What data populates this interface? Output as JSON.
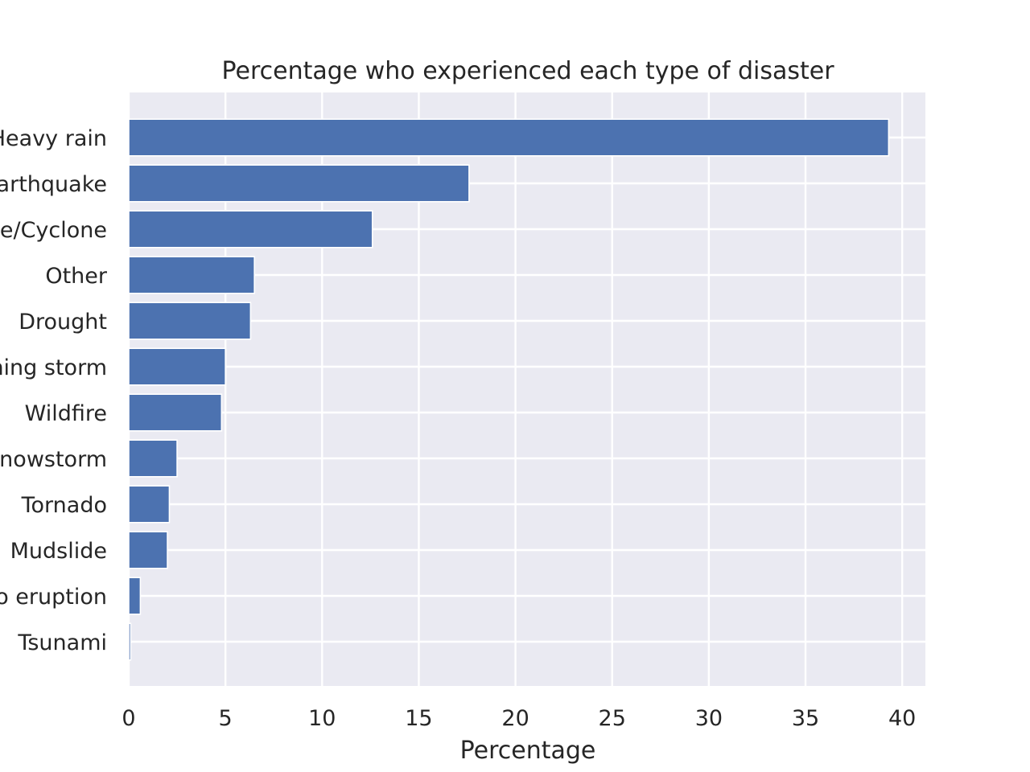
{
  "chart_data": {
    "type": "bar",
    "orientation": "horizontal",
    "title": "Percentage who experienced each type of disaster",
    "xlabel": "Percentage",
    "ylabel": "",
    "xlim": [
      0,
      41.2
    ],
    "xticks": [
      0,
      5,
      10,
      15,
      20,
      25,
      30,
      35,
      40
    ],
    "grid": true,
    "bar_color": "#4c72b0",
    "background_color": "#eaeaf2",
    "categories": [
      "Heavy rain",
      "Earthquake",
      "Hurricane/Cyclone",
      "Other",
      "Drought",
      "Lightning storm",
      "Wildfire",
      "Snowstorm",
      "Tornado",
      "Mudslide",
      "Volcano eruption",
      "Tsunami"
    ],
    "values": [
      39.3,
      17.6,
      12.6,
      6.5,
      6.3,
      5.0,
      4.8,
      2.5,
      2.1,
      2.0,
      0.6,
      0.1
    ]
  }
}
